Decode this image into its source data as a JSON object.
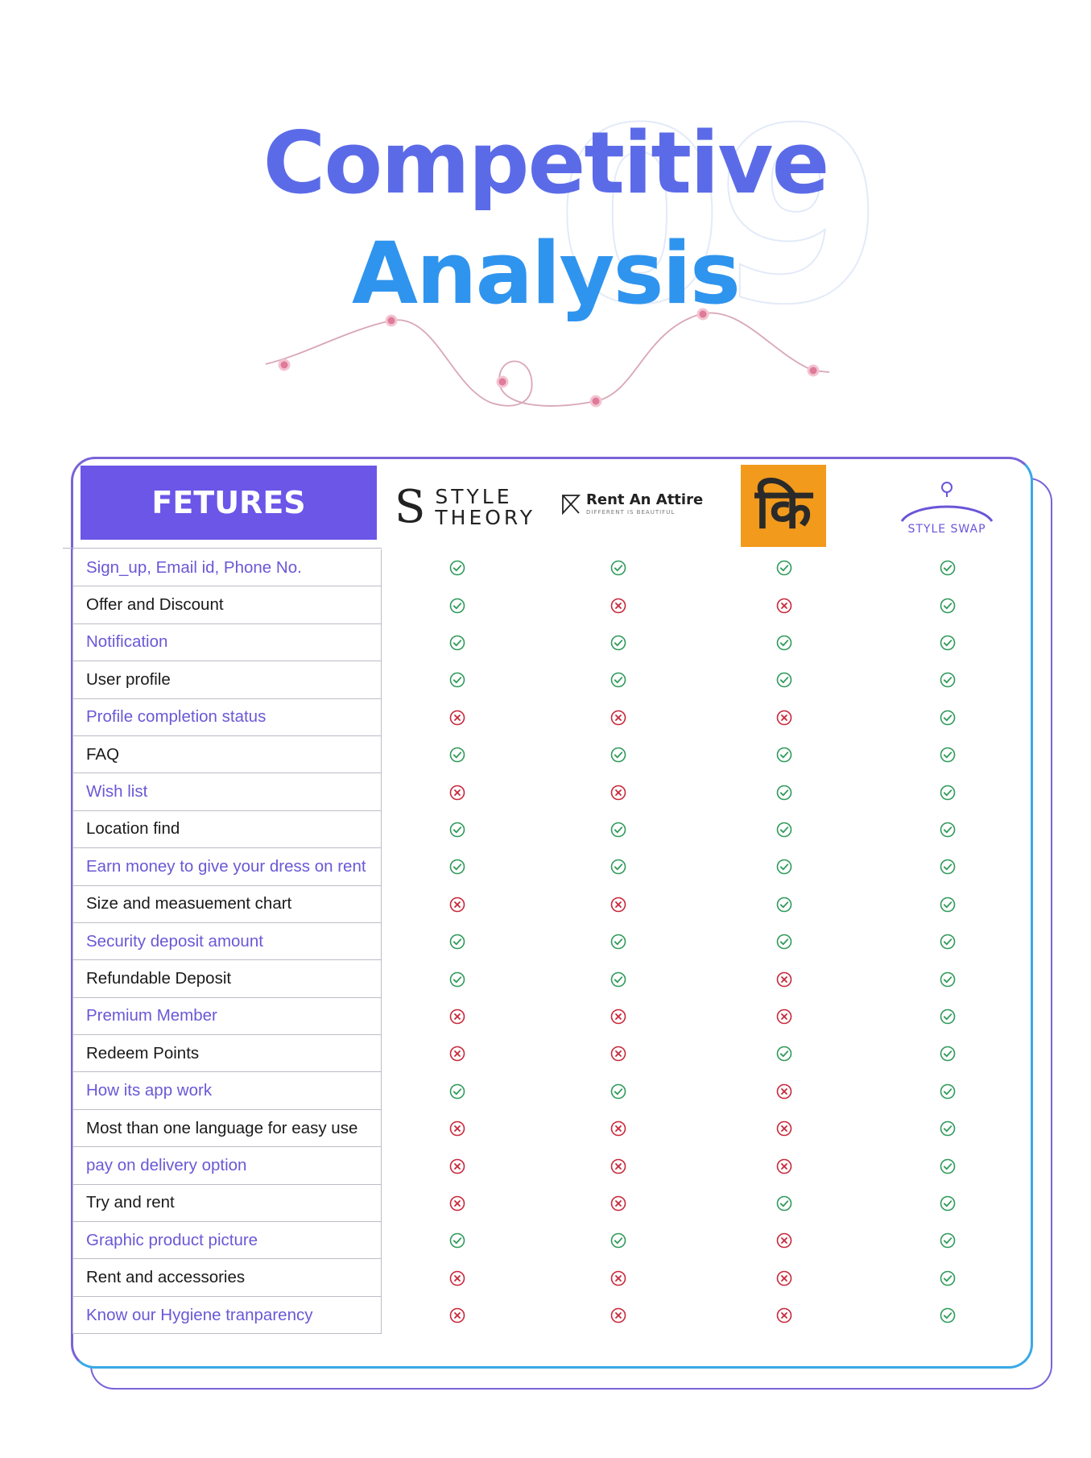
{
  "title": {
    "line1": "Competitive",
    "line2": "Analysis",
    "section_number": "09"
  },
  "colors": {
    "accent": "#6b56e8",
    "check": "#2f9a5a",
    "cross": "#c8283a",
    "title1": "#5b6be8",
    "title2": "#2f94ee"
  },
  "table": {
    "header": "FETURES",
    "competitors": [
      {
        "name": "STYLE THEORY",
        "logo_lines": [
          "STYLE",
          "THEORY"
        ],
        "logo_icon": "style-theory-s-logo"
      },
      {
        "name": "Rent An Attire",
        "tagline": "DIFFERENT IS BEAUTIFUL",
        "logo_icon": "rent-an-attire-logo"
      },
      {
        "name": "कि",
        "logo_icon": "ki-logo"
      },
      {
        "name": "STYLE SWAP",
        "logo_icon": "hanger-logo"
      }
    ],
    "features": [
      {
        "label": "Sign_up, Email id, Phone No.",
        "values": [
          true,
          true,
          true,
          true
        ]
      },
      {
        "label": "Offer and Discount",
        "values": [
          true,
          false,
          false,
          true
        ]
      },
      {
        "label": "Notification",
        "values": [
          true,
          true,
          true,
          true
        ]
      },
      {
        "label": "User profile",
        "values": [
          true,
          true,
          true,
          true
        ]
      },
      {
        "label": "Profile completion status",
        "values": [
          false,
          false,
          false,
          true
        ]
      },
      {
        "label": "FAQ",
        "values": [
          true,
          true,
          true,
          true
        ]
      },
      {
        "label": "Wish list",
        "values": [
          false,
          false,
          true,
          true
        ]
      },
      {
        "label": "Location find",
        "values": [
          true,
          true,
          true,
          true
        ]
      },
      {
        "label": "Earn money to give your dress on rent",
        "values": [
          true,
          true,
          true,
          true
        ]
      },
      {
        "label": "Size and measuement chart",
        "values": [
          false,
          false,
          true,
          true
        ]
      },
      {
        "label": "Security deposit amount",
        "values": [
          true,
          true,
          true,
          true
        ]
      },
      {
        "label": "Refundable Deposit",
        "values": [
          true,
          true,
          false,
          true
        ]
      },
      {
        "label": "Premium Member",
        "values": [
          false,
          false,
          false,
          true
        ]
      },
      {
        "label": "Redeem Points",
        "values": [
          false,
          false,
          true,
          true
        ]
      },
      {
        "label": "How its app work",
        "values": [
          true,
          true,
          false,
          true
        ]
      },
      {
        "label": "Most than one language for easy use",
        "values": [
          false,
          false,
          false,
          true
        ]
      },
      {
        "label": "pay on delivery option",
        "values": [
          false,
          false,
          false,
          true
        ]
      },
      {
        "label": "Try and rent",
        "values": [
          false,
          false,
          true,
          true
        ]
      },
      {
        "label": "Graphic product picture",
        "values": [
          true,
          true,
          false,
          true
        ]
      },
      {
        "label": "Rent and accessories",
        "values": [
          false,
          false,
          false,
          true
        ]
      },
      {
        "label": "Know our Hygiene tranparency",
        "values": [
          false,
          false,
          false,
          true
        ]
      }
    ]
  }
}
